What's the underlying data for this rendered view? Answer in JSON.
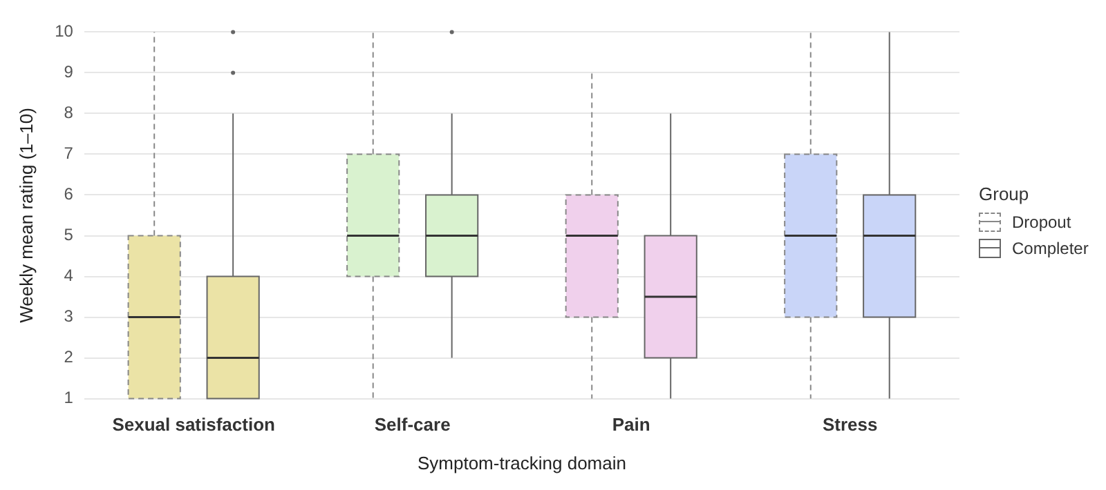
{
  "chart_data": {
    "type": "box",
    "xlabel": "Symptom-tracking domain",
    "ylabel": "Weekly mean rating (1–10)",
    "legend_title": "Group",
    "categories": [
      "Sexual satisfaction",
      "Self-care",
      "Pain",
      "Stress"
    ],
    "ylim": [
      1,
      10
    ],
    "yticks": [
      1,
      2,
      3,
      4,
      5,
      6,
      7,
      8,
      9,
      10
    ],
    "grid": "y",
    "legend": "right",
    "series": [
      {
        "name": "Dropout",
        "line_style": "dashed",
        "color": "#888888",
        "colors": [
          "#ebe3a6",
          "#d9f2cf",
          "#f0d0ec",
          "#c9d5f8"
        ],
        "boxes": [
          {
            "low": 1,
            "q1": 1,
            "median": 3,
            "q3": 5,
            "high": 10
          },
          {
            "low": 1,
            "q1": 4,
            "median": 5,
            "q3": 7,
            "high": 10
          },
          {
            "low": 1,
            "q1": 3,
            "median": 5,
            "q3": 6,
            "high": 9
          },
          {
            "low": 1,
            "q1": 3,
            "median": 5,
            "q3": 7,
            "high": 10
          }
        ]
      },
      {
        "name": "Completer",
        "line_style": "solid",
        "color": "#666666",
        "colors": [
          "#ebe3a6",
          "#d9f2cf",
          "#f0d0ec",
          "#c9d5f8"
        ],
        "boxes": [
          {
            "low": 1,
            "q1": 1,
            "median": 2,
            "q3": 4,
            "high": 8,
            "outliers": [
              9,
              10
            ]
          },
          {
            "low": 2,
            "q1": 4,
            "median": 5,
            "q3": 6,
            "high": 8,
            "outliers": [
              10
            ]
          },
          {
            "low": 1,
            "q1": 2,
            "median": 3.5,
            "q3": 5,
            "high": 8
          },
          {
            "low": 1,
            "q1": 3,
            "median": 5,
            "q3": 6,
            "high": 10
          }
        ]
      }
    ]
  }
}
